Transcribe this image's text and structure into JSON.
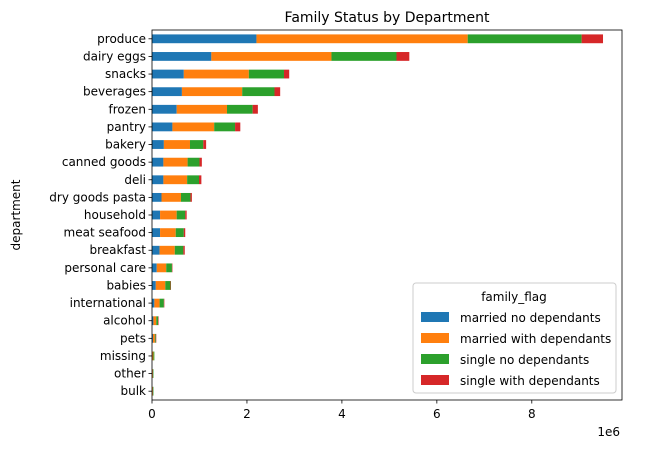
{
  "chart_data": {
    "type": "bar",
    "orientation": "horizontal",
    "stacked": true,
    "title": "Family Status by Department",
    "ylabel": "department",
    "xlabel": "",
    "offset_label": "1e6",
    "xlim": [
      0,
      9.9
    ],
    "x_ticks": [
      0,
      2,
      4,
      6,
      8
    ],
    "grid": false,
    "legend_title": "family_flag",
    "legend_position": "lower-right",
    "categories": [
      "produce",
      "dairy eggs",
      "snacks",
      "beverages",
      "frozen",
      "pantry",
      "bakery",
      "canned goods",
      "deli",
      "dry goods pasta",
      "household",
      "meat seafood",
      "breakfast",
      "personal care",
      "babies",
      "international",
      "alcohol",
      "pets",
      "missing",
      "other",
      "bulk"
    ],
    "series": [
      {
        "name": "married no dependants",
        "color": "#1f77b4",
        "values": [
          2.2,
          1.25,
          0.67,
          0.63,
          0.52,
          0.43,
          0.25,
          0.24,
          0.24,
          0.2,
          0.17,
          0.17,
          0.16,
          0.1,
          0.08,
          0.05,
          0.03,
          0.02,
          0.01,
          0.01,
          0.01
        ]
      },
      {
        "name": "married with dependants",
        "color": "#ff7f0e",
        "values": [
          4.45,
          2.53,
          1.37,
          1.27,
          1.06,
          0.88,
          0.55,
          0.51,
          0.5,
          0.41,
          0.35,
          0.33,
          0.32,
          0.2,
          0.2,
          0.11,
          0.06,
          0.04,
          0.02,
          0.01,
          0.01
        ]
      },
      {
        "name": "single no dependants",
        "color": "#2ca02c",
        "values": [
          2.4,
          1.37,
          0.74,
          0.68,
          0.54,
          0.44,
          0.28,
          0.25,
          0.25,
          0.2,
          0.18,
          0.17,
          0.18,
          0.12,
          0.11,
          0.09,
          0.04,
          0.02,
          0.02,
          0.01,
          0.01
        ]
      },
      {
        "name": "single with dependants",
        "color": "#d62728",
        "values": [
          0.45,
          0.27,
          0.11,
          0.12,
          0.11,
          0.11,
          0.06,
          0.05,
          0.05,
          0.03,
          0.03,
          0.03,
          0.03,
          0.01,
          0.01,
          0.01,
          0.01,
          0.01,
          0.0,
          0.0,
          0.0
        ]
      }
    ]
  }
}
